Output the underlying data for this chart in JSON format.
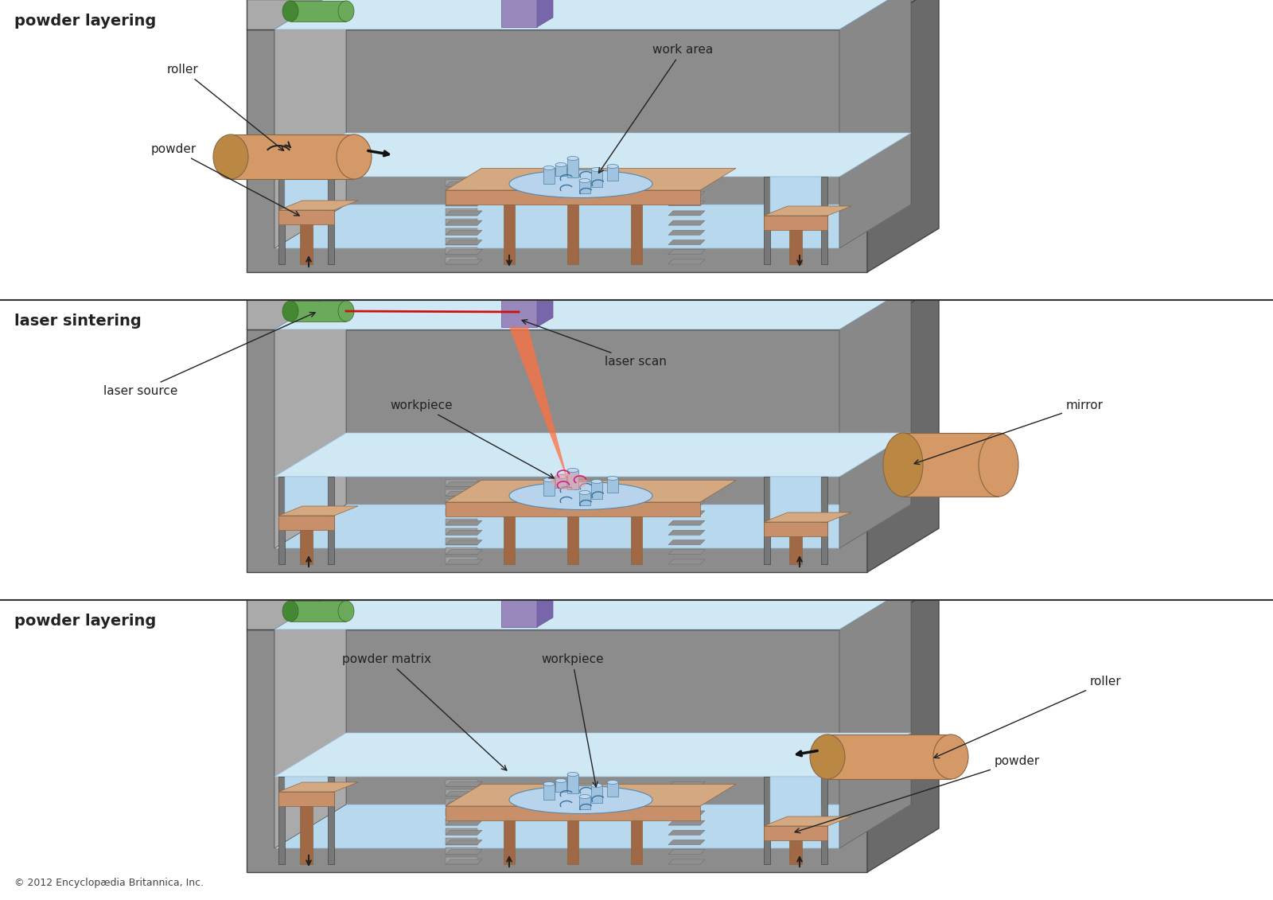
{
  "bg_color": "#ffffff",
  "panel_titles": [
    "powder layering",
    "laser sintering",
    "powder layering"
  ],
  "panel_title_fontsize": 14,
  "copyright": "© 2012 Encyclopædia Britannica, Inc.",
  "copyright_fontsize": 9,
  "label_fontsize": 11,
  "label_color": "#222222",
  "gray_body": "#8c8c8c",
  "gray_top": "#c8c8c8",
  "gray_side": "#6a6a6a",
  "gray_inner_wall": "#a0a0a0",
  "gray_inner_top": "#b8b8b8",
  "gray_step": "#909090",
  "copper": "#c8906a",
  "copper_dark": "#a06844",
  "copper_light": "#d4a880",
  "green_cyl": "#6aaa5a",
  "green_cyl_dark": "#448833",
  "purple_box": "#9988bb",
  "blue_bed": "#b8d8ee",
  "blue_bed_light": "#d0e8f4",
  "blue_workpiece": "#8ab8d8",
  "white_top": "#eeeeee",
  "laser_red": "#cc1111",
  "laser_cone": "#ff7040"
}
